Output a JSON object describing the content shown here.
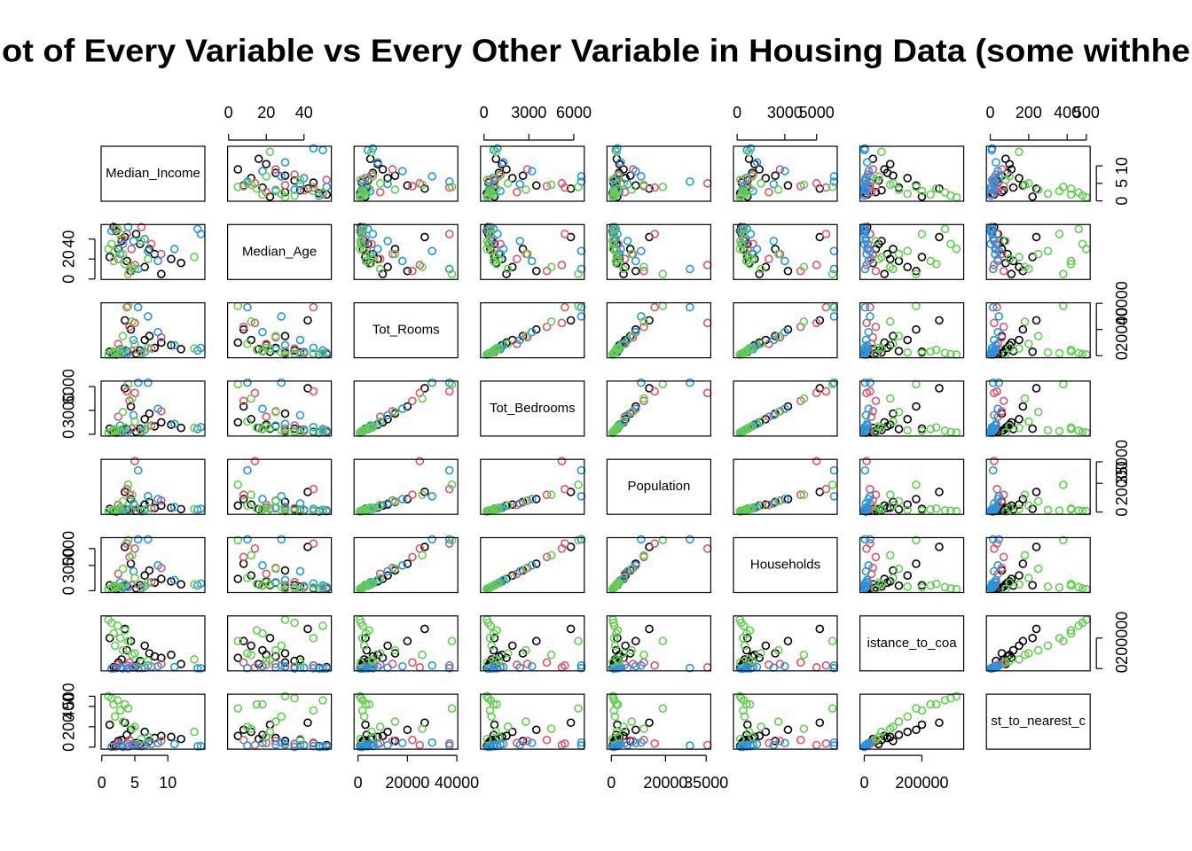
{
  "chart_data": {
    "type": "scatter-matrix",
    "title": "ot of Every Variable vs Every Other Variable in Housing Data (some withhe",
    "variables": [
      {
        "label": "Median_Income",
        "lim": [
          -0.1,
          15.6
        ],
        "ticks": [
          0,
          5,
          10
        ]
      },
      {
        "label": "Median_Age",
        "lim": [
          -0.5,
          54.5
        ],
        "ticks": [
          0,
          20,
          40
        ]
      },
      {
        "label": "Tot_Rooms",
        "lim": [
          -1600,
          40400
        ],
        "ticks": [
          0,
          20000,
          40000
        ]
      },
      {
        "label": "Tot_Bedrooms",
        "lim": [
          -230,
          6700
        ],
        "ticks": [
          0,
          3000,
          6000
        ]
      },
      {
        "label": "Population",
        "lim": [
          -1600,
          36700
        ],
        "ticks": [
          0,
          20000,
          35000
        ]
      },
      {
        "label": "Households",
        "lim": [
          -230,
          6300
        ],
        "ticks": [
          0,
          3000,
          5000
        ]
      },
      {
        "label": "istance_to_coa",
        "lim": [
          -15000,
          345000
        ],
        "ticks": [
          0,
          200000
        ]
      },
      {
        "label": "st_to_nearest_c",
        "lim": [
          -20,
          520
        ],
        "ticks": [
          0,
          200,
          400,
          500
        ]
      }
    ],
    "series": [
      {
        "color": "#000000",
        "values": [
          [
            2.5,
            30,
            2000,
            420,
            1100,
            400,
            40000,
            60
          ],
          [
            3.8,
            18,
            3500,
            650,
            1800,
            600,
            120000,
            120
          ],
          [
            5.2,
            45,
            1500,
            300,
            800,
            290,
            20000,
            40
          ],
          [
            8.0,
            25,
            6000,
            1000,
            2800,
            950,
            80000,
            90
          ],
          [
            1.8,
            52,
            1200,
            280,
            700,
            260,
            10000,
            20
          ],
          [
            6.5,
            12,
            12000,
            1900,
            5200,
            1800,
            150000,
            150
          ],
          [
            3.0,
            38,
            2500,
            520,
            1400,
            480,
            60000,
            70
          ],
          [
            10.5,
            20,
            8000,
            1200,
            3000,
            1100,
            90000,
            100
          ],
          [
            4.4,
            8,
            20000,
            3500,
            9000,
            3200,
            180000,
            170
          ],
          [
            2.2,
            48,
            900,
            200,
            500,
            190,
            5000,
            10
          ],
          [
            7.2,
            30,
            15000,
            2600,
            7000,
            2400,
            100000,
            60
          ],
          [
            12.0,
            16,
            5000,
            800,
            2000,
            750,
            30000,
            80
          ],
          [
            3.5,
            42,
            27000,
            5800,
            14000,
            5200,
            260000,
            240
          ],
          [
            5.8,
            35,
            4000,
            700,
            1900,
            650,
            50000,
            30
          ],
          [
            1.2,
            22,
            3000,
            700,
            2200,
            650,
            200000,
            220
          ],
          [
            9.0,
            5,
            10000,
            1500,
            4500,
            1400,
            70000,
            110
          ]
        ]
      },
      {
        "color": "#DF536B",
        "values": [
          [
            3.0,
            40,
            1800,
            400,
            1000,
            380,
            5000,
            15
          ],
          [
            4.5,
            30,
            3500,
            700,
            1900,
            650,
            15000,
            25
          ],
          [
            6.0,
            52,
            2000,
            380,
            900,
            360,
            3000,
            10
          ],
          [
            2.5,
            20,
            9000,
            2200,
            5000,
            2000,
            25000,
            40
          ],
          [
            5.0,
            14,
            25000,
            5200,
            35500,
            5000,
            8000,
            20
          ],
          [
            7.5,
            35,
            5500,
            1100,
            2600,
            1000,
            12000,
            30
          ],
          [
            3.8,
            45,
            37000,
            5400,
            16000,
            5600,
            20000,
            35
          ],
          [
            9.0,
            25,
            14000,
            2900,
            8000,
            2700,
            30000,
            60
          ],
          [
            2.0,
            50,
            1200,
            300,
            800,
            280,
            2000,
            5
          ],
          [
            4.2,
            8,
            22000,
            4200,
            12000,
            4000,
            40000,
            70
          ]
        ]
      },
      {
        "color": "#2297E6",
        "values": [
          [
            4.0,
            52,
            2200,
            450,
            1200,
            420,
            1000,
            5
          ],
          [
            6.5,
            40,
            3000,
            600,
            1500,
            550,
            5000,
            20
          ],
          [
            15.0,
            45,
            6000,
            900,
            2200,
            850,
            2000,
            10
          ],
          [
            3.2,
            35,
            1500,
            350,
            900,
            330,
            500,
            2
          ],
          [
            11.0,
            30,
            8000,
            1300,
            3500,
            1250,
            10000,
            30
          ],
          [
            5.5,
            10,
            37000,
            6500,
            29000,
            6100,
            3000,
            15
          ],
          [
            14.5,
            50,
            4000,
            650,
            1600,
            620,
            1500,
            8
          ],
          [
            2.8,
            25,
            5000,
            1100,
            3000,
            1000,
            8000,
            25
          ],
          [
            8.5,
            18,
            18000,
            3200,
            9000,
            3000,
            15000,
            40
          ],
          [
            1.5,
            48,
            900,
            250,
            700,
            230,
            300,
            3
          ],
          [
            7.0,
            28,
            30000,
            6500,
            11000,
            6100,
            20000,
            45
          ],
          [
            4.8,
            38,
            12000,
            2400,
            6000,
            2300,
            6000,
            20
          ]
        ]
      },
      {
        "color": "#61D04F",
        "values": [
          [
            2.0,
            28,
            2500,
            500,
            1400,
            470,
            150000,
            300
          ],
          [
            3.5,
            15,
            4500,
            850,
            2400,
            800,
            250000,
            420
          ],
          [
            1.5,
            35,
            1200,
            280,
            800,
            260,
            300000,
            480
          ],
          [
            5.0,
            10,
            9000,
            1600,
            4500,
            1500,
            100000,
            200
          ],
          [
            2.8,
            45,
            1800,
            400,
            1000,
            380,
            200000,
            360
          ],
          [
            7.0,
            20,
            6000,
            1000,
            2700,
            950,
            50000,
            100
          ],
          [
            4.0,
            5,
            38000,
            6300,
            19000,
            6000,
            180000,
            380
          ],
          [
            1.0,
            30,
            800,
            200,
            600,
            180,
            320000,
            500
          ],
          [
            3.2,
            25,
            15000,
            2800,
            7500,
            2600,
            120000,
            250
          ],
          [
            14.0,
            22,
            5500,
            800,
            2000,
            750,
            60000,
            150
          ],
          [
            2.4,
            50,
            2000,
            450,
            1100,
            420,
            280000,
            460
          ],
          [
            4.6,
            12,
            26000,
            4500,
            12000,
            4200,
            90000,
            180
          ],
          [
            1.8,
            18,
            3200,
            650,
            1800,
            600,
            230000,
            420
          ],
          [
            6.0,
            38,
            1000,
            220,
            500,
            200,
            40000,
            80
          ]
        ]
      }
    ]
  }
}
